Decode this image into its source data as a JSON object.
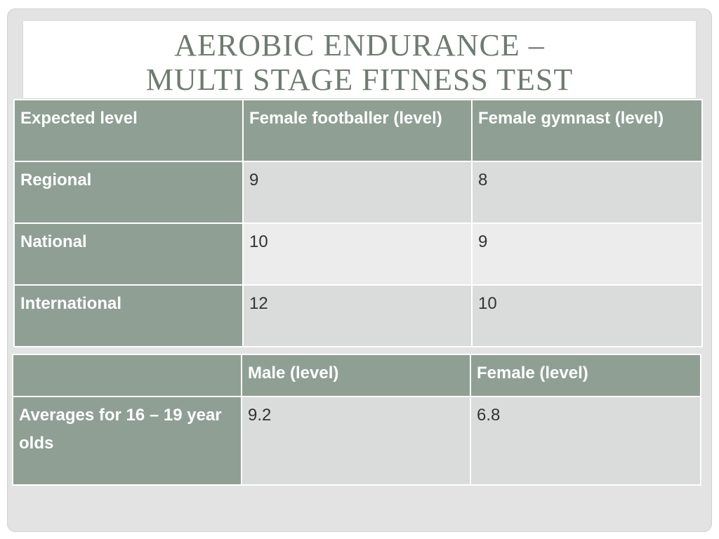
{
  "title": {
    "line1": "AEROBIC ENDURANCE –",
    "line2": "MULTI STAGE FITNESS TEST"
  },
  "table_levels": {
    "headers": [
      "Expected level",
      "Female footballer (level)",
      "Female gymnast (level)"
    ],
    "rows": [
      [
        "Regional",
        "9",
        "8"
      ],
      [
        "National",
        "10",
        "9"
      ],
      [
        "International",
        "12",
        "10"
      ]
    ]
  },
  "table_averages": {
    "headers": [
      "",
      "Male (level)",
      "Female (level)"
    ],
    "rows": [
      [
        "Averages for 16 – 19 year olds",
        "9.2",
        "6.8"
      ]
    ]
  },
  "colors": {
    "header_bg": "#8f9f94",
    "cell_bg_dark": "#d9dcdb",
    "cell_bg_light": "#ebeceb",
    "title_text": "#6f7a70",
    "slide_bg": "#e3e3e3"
  }
}
